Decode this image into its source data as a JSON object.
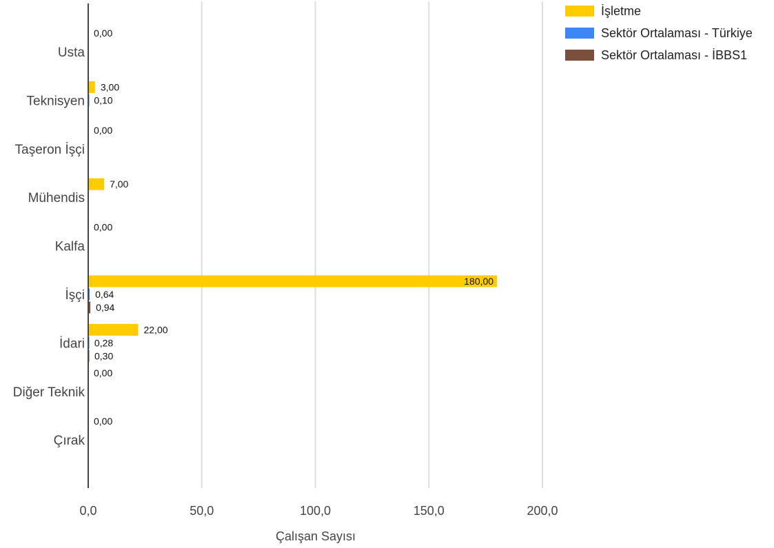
{
  "chart_data": {
    "type": "bar",
    "orientation": "horizontal",
    "categories": [
      "Usta",
      "Teknisyen",
      "Taşeron İşçi",
      "Mühendis",
      "Kalfa",
      "İşçi",
      "İdari",
      "Diğer Teknik",
      "Çırak"
    ],
    "series": [
      {
        "name": "İşletme",
        "color": "#ffcc00",
        "values": [
          0,
          3,
          0,
          7,
          0,
          180,
          22,
          0,
          0
        ]
      },
      {
        "name": "Sektör Ortalaması - Türkiye",
        "color": "#3d87f5",
        "values": [
          null,
          0.1,
          null,
          null,
          null,
          0.64,
          0.28,
          null,
          null
        ]
      },
      {
        "name": "Sektör Ortalaması - İBBS1",
        "color": "#7b4f3e",
        "values": [
          null,
          null,
          null,
          null,
          null,
          0.94,
          0.3,
          null,
          null
        ]
      }
    ],
    "data_labels": [
      [
        "0,00",
        "3,00",
        "0,00",
        "7,00",
        "0,00",
        "180,00",
        "22,00",
        "0,00",
        "0,00"
      ],
      [
        "",
        "0,10",
        "",
        "",
        "",
        "0,64",
        "0,28",
        "",
        ""
      ],
      [
        "",
        "",
        "",
        "",
        "",
        "0,94",
        "0,30",
        "",
        ""
      ]
    ],
    "xlabel": "Çalışan Sayısı",
    "ylabel": "",
    "xlim": [
      0,
      200
    ],
    "xticks": [
      0,
      50,
      100,
      150,
      200
    ],
    "xtick_labels": [
      "0,0",
      "50,0",
      "100,0",
      "150,0",
      "200,0"
    ],
    "grid": true,
    "legend_position": "top-right"
  }
}
